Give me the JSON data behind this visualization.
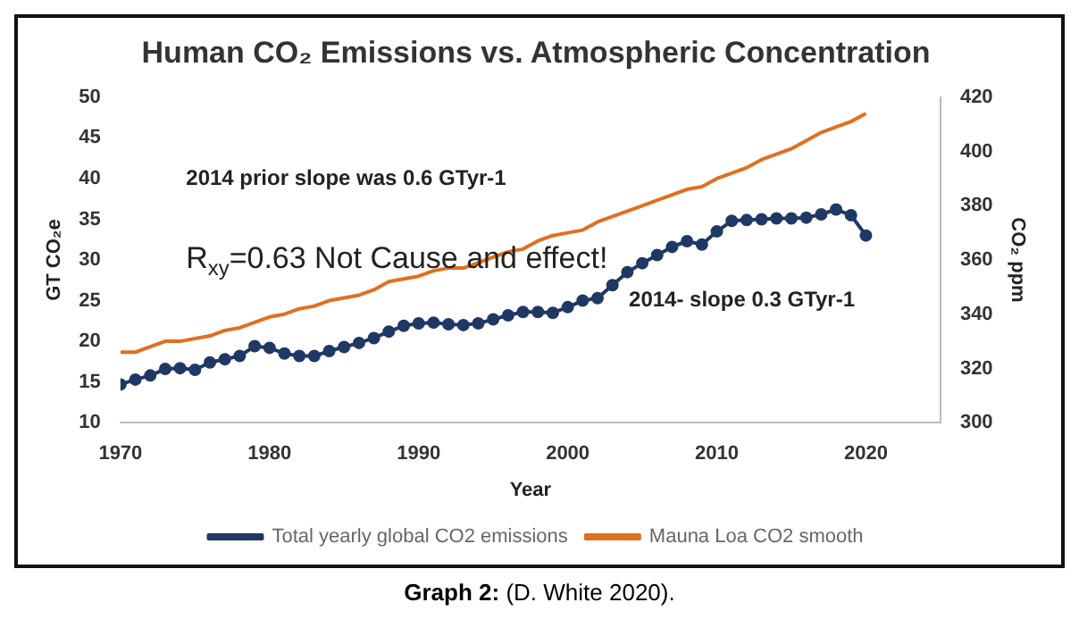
{
  "chart_data": {
    "type": "line",
    "title": "Human CO₂ Emissions vs. Atmospheric Concentration",
    "xlabel": "Year",
    "ylabel": "GT CO₂e",
    "y2label": "CO₂ ppm",
    "x": [
      1970,
      1971,
      1972,
      1973,
      1974,
      1975,
      1976,
      1977,
      1978,
      1979,
      1980,
      1981,
      1982,
      1983,
      1984,
      1985,
      1986,
      1987,
      1988,
      1989,
      1990,
      1991,
      1992,
      1993,
      1994,
      1995,
      1996,
      1997,
      1998,
      1999,
      2000,
      2001,
      2002,
      2003,
      2004,
      2005,
      2006,
      2007,
      2008,
      2009,
      2010,
      2011,
      2012,
      2013,
      2014,
      2015,
      2016,
      2017,
      2018,
      2019,
      2020
    ],
    "series": [
      {
        "name": "Total yearly global CO2 emissions",
        "color": "#1f3864",
        "marker": "circle",
        "values": [
          14.7,
          15.3,
          15.8,
          16.6,
          16.7,
          16.5,
          17.4,
          17.8,
          18.2,
          19.4,
          19.2,
          18.5,
          18.2,
          18.2,
          18.8,
          19.3,
          19.8,
          20.4,
          21.2,
          21.9,
          22.2,
          22.3,
          22.1,
          22.0,
          22.2,
          22.7,
          23.2,
          23.6,
          23.6,
          23.5,
          24.2,
          25.0,
          25.3,
          26.9,
          28.5,
          29.6,
          30.6,
          31.6,
          32.3,
          31.9,
          33.5,
          34.8,
          34.9,
          35.0,
          35.1,
          35.1,
          35.2,
          35.6,
          36.2,
          35.5,
          33.0
        ]
      },
      {
        "name": "Mauna Loa CO2 smooth",
        "color": "#e07020",
        "marker": "none",
        "axis": "y2",
        "values": [
          326,
          326,
          328,
          330,
          330,
          331,
          332,
          334,
          335,
          337,
          339,
          340,
          342,
          343,
          345,
          346,
          347,
          349,
          352,
          353,
          354,
          356,
          357,
          357,
          359,
          361,
          363,
          364,
          367,
          369,
          370,
          371,
          374,
          376,
          378,
          380,
          382,
          384,
          386,
          387,
          390,
          392,
          394,
          397,
          399,
          401,
          404,
          407,
          409,
          411,
          414
        ]
      }
    ],
    "xlim": [
      1970,
      2025
    ],
    "xticks": [
      1970,
      1980,
      1990,
      2000,
      2010,
      2020
    ],
    "ylim": [
      10,
      50
    ],
    "yticks": [
      10,
      15,
      20,
      25,
      30,
      35,
      40,
      45,
      50
    ],
    "y2lim": [
      300,
      420
    ],
    "y2ticks": [
      300,
      320,
      340,
      360,
      380,
      400,
      420
    ],
    "legend": "bottom",
    "annotations": [
      "2014 prior slope was 0.6 GTyr-1",
      "R$_{xy}$=0.63 Not Cause and effect!",
      "2014- slope 0.3 GTyr-1",
      "Graph 2: (D. White 2020)."
    ]
  }
}
